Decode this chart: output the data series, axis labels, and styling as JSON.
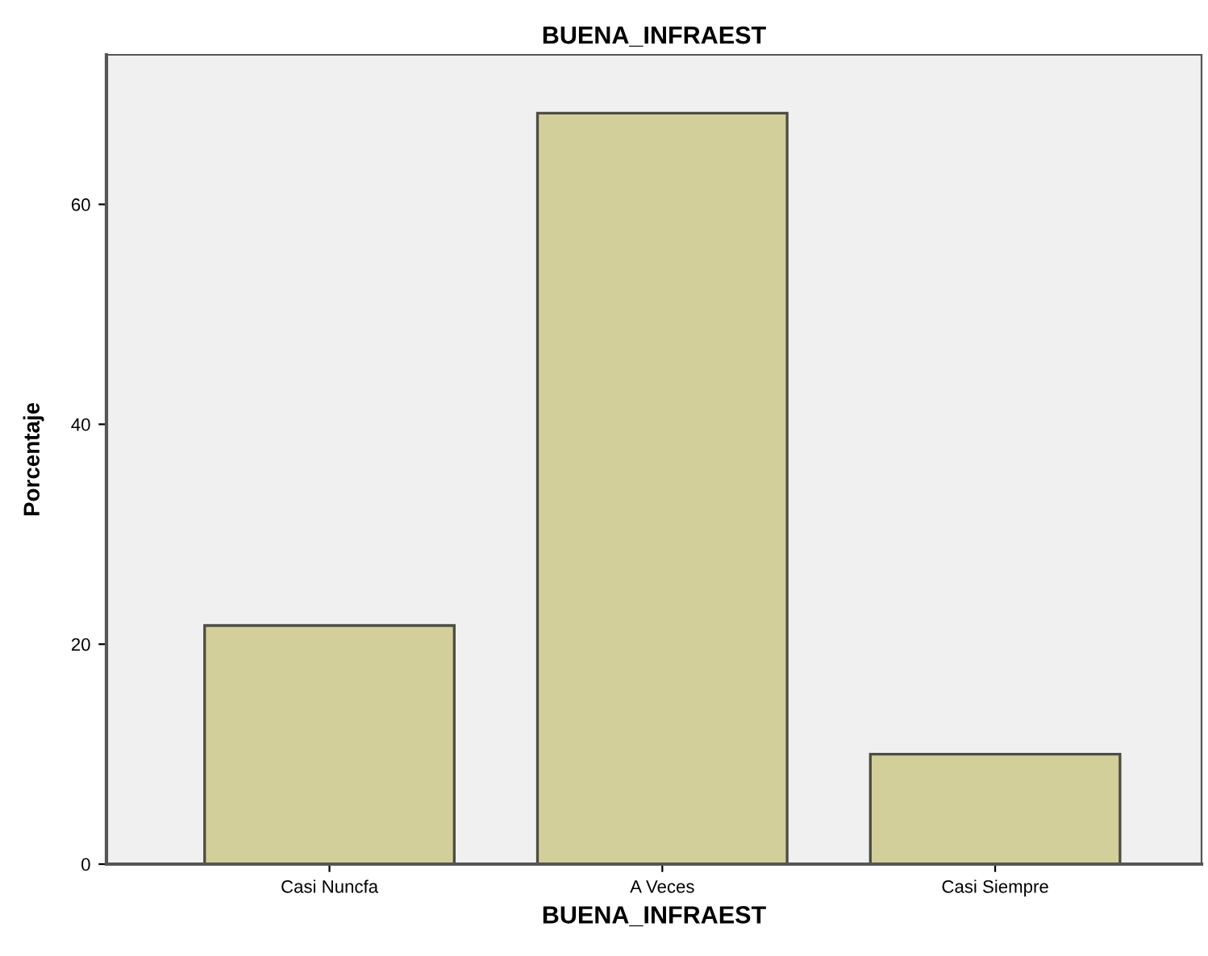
{
  "chart_data": {
    "type": "bar",
    "title": "BUENA_INFRAEST",
    "xlabel": "BUENA_INFRAEST",
    "ylabel": "Porcentaje",
    "categories": [
      "Casi Nuncfa",
      "A Veces",
      "Casi Siempre"
    ],
    "values": [
      21.7,
      68.3,
      10.0
    ],
    "color": "#d3cf9b",
    "ylim": [
      0,
      73.6
    ],
    "yticks": [
      0,
      20,
      40,
      60
    ],
    "grid": false,
    "legend": false
  }
}
